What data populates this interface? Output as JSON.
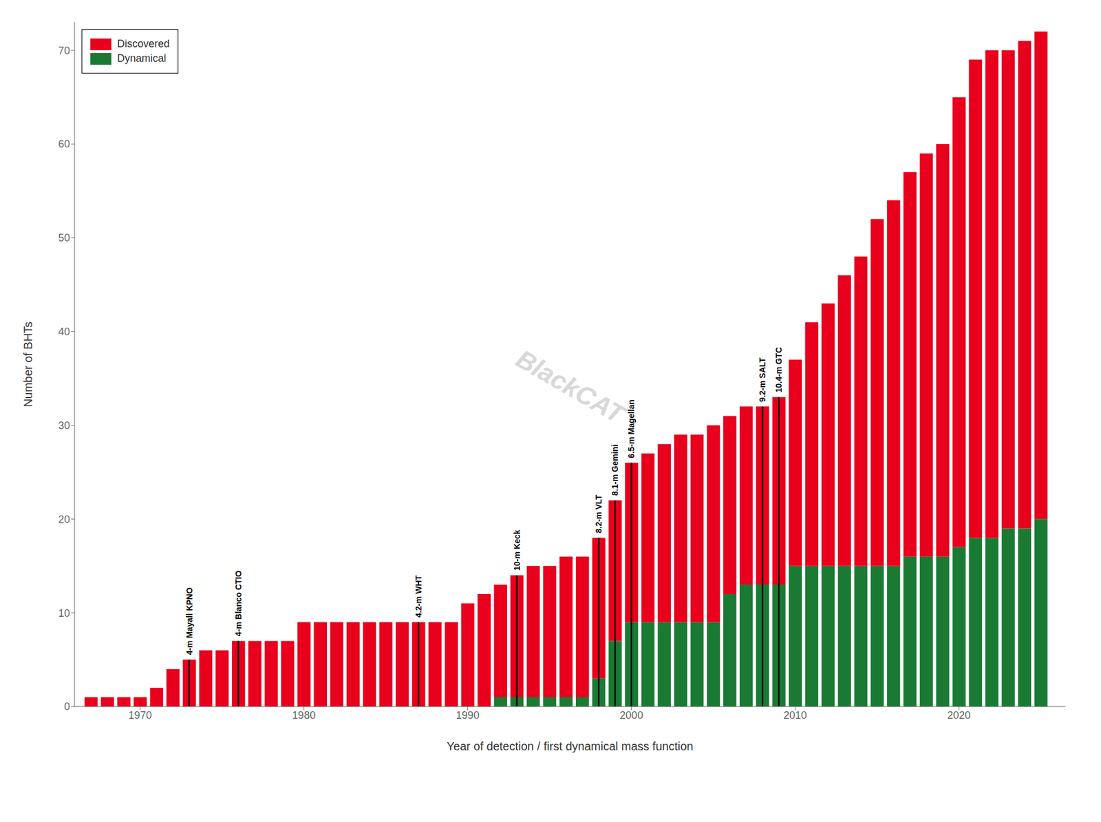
{
  "chart_data": {
    "type": "bar",
    "stacked": true,
    "xlabel": "Year of detection / first dynamical mass function",
    "ylabel": "Number of BHTs",
    "x": [
      1967,
      1968,
      1969,
      1970,
      1971,
      1972,
      1973,
      1974,
      1975,
      1976,
      1977,
      1978,
      1979,
      1980,
      1981,
      1982,
      1983,
      1984,
      1985,
      1986,
      1987,
      1988,
      1989,
      1990,
      1991,
      1992,
      1993,
      1994,
      1995,
      1996,
      1997,
      1998,
      1999,
      2000,
      2001,
      2002,
      2003,
      2004,
      2005,
      2006,
      2007,
      2008,
      2009,
      2010,
      2011,
      2012,
      2013,
      2014,
      2015,
      2016,
      2017,
      2018,
      2019,
      2020,
      2021,
      2022,
      2023,
      2024,
      2025
    ],
    "series": [
      {
        "name": "Dynamical",
        "color": "#1A7A34",
        "values": [
          0,
          0,
          0,
          0,
          0,
          0,
          0,
          0,
          0,
          0,
          0,
          0,
          0,
          0,
          0,
          0,
          0,
          0,
          0,
          0,
          0,
          0,
          0,
          0,
          0,
          1,
          1,
          1,
          1,
          1,
          1,
          3,
          7,
          9,
          9,
          9,
          9,
          9,
          9,
          12,
          13,
          13,
          13,
          15,
          15,
          15,
          15,
          15,
          15,
          15,
          16,
          16,
          16,
          17,
          18,
          18,
          19,
          19,
          20
        ]
      },
      {
        "name": "Discovered",
        "color": "#E8001C",
        "values": [
          1,
          1,
          1,
          1,
          2,
          4,
          5,
          6,
          6,
          7,
          7,
          7,
          7,
          9,
          9,
          9,
          9,
          9,
          9,
          9,
          9,
          9,
          9,
          11,
          12,
          12,
          13,
          14,
          14,
          15,
          15,
          15,
          15,
          17,
          18,
          19,
          20,
          20,
          21,
          19,
          19,
          19,
          20,
          22,
          26,
          28,
          31,
          33,
          37,
          39,
          41,
          43,
          44,
          48,
          51,
          52,
          51,
          52,
          52
        ]
      }
    ],
    "xlim": [
      1966.0,
      2026.5
    ],
    "xticks": [
      1970,
      1980,
      1990,
      2000,
      2010,
      2020
    ],
    "ylim": [
      0,
      73
    ],
    "yticks": [
      0,
      10,
      20,
      30,
      40,
      50,
      60,
      70
    ],
    "legend": "upper left",
    "grid": false,
    "annotations": [
      {
        "x": 1973,
        "y": 5,
        "label": "4-m Mayall KPNO"
      },
      {
        "x": 1976,
        "y": 7,
        "label": "4-m Blanco CTIO"
      },
      {
        "x": 1987,
        "y": 9,
        "label": "4.2-m WHT"
      },
      {
        "x": 1993,
        "y": 14,
        "label": "10-m Keck"
      },
      {
        "x": 1998,
        "y": 18,
        "label": "8.2-m VLT"
      },
      {
        "x": 1999,
        "y": 22,
        "label": "8.1-m Gemini"
      },
      {
        "x": 2000,
        "y": 26,
        "label": "6.5-m Magellan"
      },
      {
        "x": 2008,
        "y": 32,
        "label": "9.2-m SALT"
      },
      {
        "x": 2009,
        "y": 33,
        "label": "10.4-m GTC"
      },
      {
        "label": "BlackCAT"
      }
    ]
  }
}
